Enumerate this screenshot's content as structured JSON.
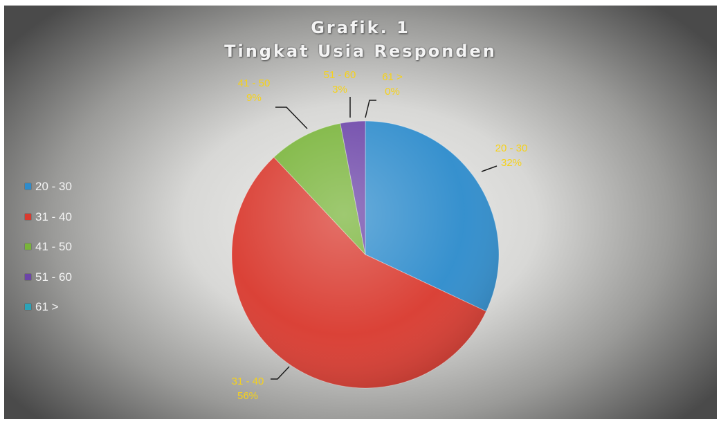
{
  "chart_data": {
    "type": "pie",
    "title": [
      "Grafik. 1",
      "Tingkat Usia Responden"
    ],
    "categories": [
      "20 - 30",
      "31 - 40",
      "41 - 50",
      "51 - 60",
      "61 >"
    ],
    "values": [
      32,
      56,
      9,
      3,
      0
    ],
    "value_labels": [
      "32%",
      "56%",
      "9%",
      "3%",
      "0%"
    ],
    "legend_position": "left",
    "colors": [
      "#2e8ccc",
      "#d93a2f",
      "#79b43a",
      "#6c45a8",
      "#2ba3b8"
    ]
  }
}
